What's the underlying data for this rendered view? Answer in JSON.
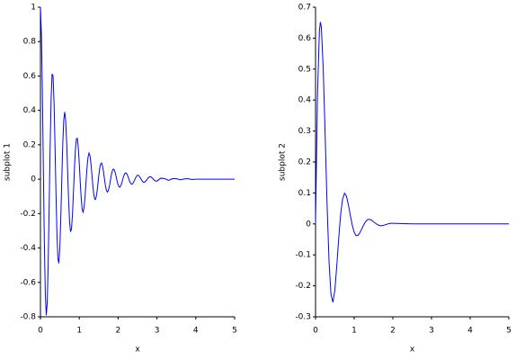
{
  "chart_data": [
    {
      "type": "line",
      "xlabel": "x",
      "ylabel": "subplot 1",
      "color": "#0000ff",
      "x": [
        0,
        0.025,
        0.05,
        0.075,
        0.1,
        0.125,
        0.15,
        0.175,
        0.2,
        0.225,
        0.25,
        0.275,
        0.3,
        0.325,
        0.35,
        0.375,
        0.4,
        0.425,
        0.45,
        0.475,
        0.5,
        0.525,
        0.55,
        0.575,
        0.6,
        0.625,
        0.65,
        0.675,
        0.7,
        0.725,
        0.75,
        0.775,
        0.8,
        0.825,
        0.85,
        0.875,
        0.9,
        0.925,
        0.95,
        0.975,
        1,
        1.025,
        1.05,
        1.075,
        1.1,
        1.125,
        1.15,
        1.175,
        1.2,
        1.225,
        1.25,
        1.275,
        1.3,
        1.325,
        1.35,
        1.375,
        1.4,
        1.425,
        1.45,
        1.475,
        1.5,
        1.525,
        1.55,
        1.575,
        1.6,
        1.625,
        1.65,
        1.675,
        1.7,
        1.725,
        1.75,
        1.775,
        1.8,
        1.825,
        1.85,
        1.875,
        1.9,
        1.925,
        1.95,
        1.975,
        2,
        2.025,
        2.05,
        2.075,
        2.1,
        2.125,
        2.15,
        2.175,
        2.2,
        2.225,
        2.25,
        2.275,
        2.3,
        2.325,
        2.35,
        2.375,
        2.4,
        2.425,
        2.45,
        2.475,
        2.5,
        2.525,
        2.55,
        2.575,
        2.6,
        2.625,
        2.65,
        2.675,
        2.7,
        2.725,
        2.75,
        2.775,
        2.8,
        2.825,
        2.85,
        2.875,
        2.9,
        2.925,
        2.95,
        2.975,
        3,
        3.1,
        3.2,
        3.3,
        3.4,
        3.5,
        3.6,
        3.7,
        3.8,
        3.9,
        4,
        4.5,
        5
      ],
      "values": [
        1,
        0.845,
        0.501,
        0.063,
        -0.358,
        -0.664,
        -0.791,
        -0.72,
        -0.484,
        -0.15,
        0.195,
        0.469,
        0.612,
        0.6,
        0.446,
        0.197,
        -0.08,
        -0.318,
        -0.464,
        -0.489,
        -0.396,
        -0.216,
        0.002,
        0.204,
        0.343,
        0.391,
        0.342,
        0.216,
        0.048,
        -0.12,
        -0.247,
        -0.306,
        -0.288,
        -0.204,
        -0.077,
        0.059,
        0.171,
        0.235,
        0.238,
        0.184,
        0.091,
        -0.017,
        -0.113,
        -0.177,
        -0.192,
        -0.162,
        -0.095,
        -0.011,
        0.07,
        0.128,
        0.152,
        0.138,
        0.092,
        0.028,
        -0.039,
        -0.091,
        -0.118,
        -0.115,
        -0.085,
        -0.037,
        0.016,
        0.062,
        0.089,
        0.094,
        0.076,
        0.041,
        -0.001,
        -0.04,
        -0.066,
        -0.075,
        -0.065,
        -0.041,
        -0.009,
        0.024,
        0.048,
        0.059,
        0.055,
        0.039,
        0.014,
        -0.012,
        -0.033,
        -0.045,
        -0.046,
        -0.035,
        -0.017,
        0.004,
        0.022,
        0.034,
        0.037,
        0.031,
        0.018,
        0.002,
        -0.014,
        -0.025,
        -0.029,
        -0.026,
        -0.017,
        -0.005,
        0.008,
        0.018,
        0.023,
        0.022,
        0.016,
        0.007,
        -0.003,
        -0.012,
        -0.017,
        -0.018,
        -0.014,
        -0.008,
        0,
        0.008,
        0.013,
        0.014,
        0.013,
        0.008,
        0.002,
        -0.005,
        -0.009,
        -0.011,
        -0.011,
        0.006,
        0.003,
        -0.007,
        0.003,
        0.003,
        -0.004,
        0.001,
        0.003,
        -0.002,
        0,
        0,
        0
      ],
      "xlim": [
        0,
        5
      ],
      "xticks": [
        0,
        1,
        2,
        3,
        4,
        5
      ],
      "ylim": [
        -0.8,
        1
      ],
      "yticks": [
        -0.8,
        -0.6,
        -0.4,
        -0.2,
        0,
        0.2,
        0.4,
        0.6,
        0.8,
        1
      ]
    },
    {
      "type": "line",
      "xlabel": "x",
      "ylabel": "subplot 2",
      "color": "#0000ff",
      "x": [
        0,
        0.05,
        0.1,
        0.125,
        0.15,
        0.2,
        0.25,
        0.3,
        0.35,
        0.4,
        0.45,
        0.5,
        0.55,
        0.6,
        0.65,
        0.7,
        0.75,
        0.8,
        0.85,
        0.9,
        0.95,
        1,
        1.05,
        1.1,
        1.15,
        1.2,
        1.25,
        1.3,
        1.35,
        1.4,
        1.45,
        1.5,
        1.55,
        1.6,
        1.65,
        1.7,
        1.75,
        1.8,
        1.85,
        1.9,
        1.95,
        2,
        2.5,
        3,
        4,
        5
      ],
      "values": [
        0,
        0.413,
        0.623,
        0.652,
        0.636,
        0.499,
        0.283,
        0.057,
        -0.123,
        -0.228,
        -0.253,
        -0.214,
        -0.135,
        -0.046,
        0.031,
        0.08,
        0.099,
        0.09,
        0.062,
        0.028,
        -0.004,
        -0.027,
        -0.038,
        -0.037,
        -0.028,
        -0.015,
        -0.002,
        0.008,
        0.014,
        0.015,
        0.012,
        0.007,
        0.002,
        -0.002,
        -0.005,
        -0.006,
        -0.005,
        -0.003,
        -0.001,
        0.001,
        0.002,
        0.002,
        0,
        0,
        0,
        0
      ],
      "xlim": [
        0,
        5
      ],
      "xticks": [
        0,
        1,
        2,
        3,
        4,
        5
      ],
      "ylim": [
        -0.3,
        0.7
      ],
      "yticks": [
        -0.3,
        -0.2,
        -0.1,
        0,
        0.1,
        0.2,
        0.3,
        0.4,
        0.5,
        0.6,
        0.7
      ]
    }
  ]
}
